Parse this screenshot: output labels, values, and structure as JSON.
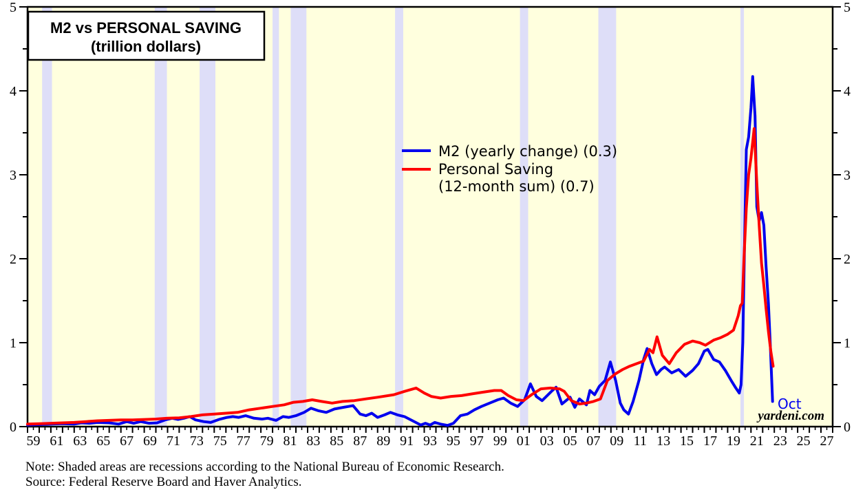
{
  "title": {
    "line1": "M2 vs PERSONAL SAVING",
    "line2": "(trillion dollars)"
  },
  "legend": {
    "items": [
      {
        "label": "M2 (yearly change) (0.3)",
        "color": "#0000EE"
      },
      {
        "label": "Personal Saving",
        "label2": "(12-month sum) (0.7)",
        "color": "#FF0000"
      }
    ]
  },
  "annotations": {
    "oct_label": "Oct",
    "watermark": "yardeni.com"
  },
  "notes": {
    "line1": "Note: Shaded areas are recessions according to the National Bureau of Economic Research.",
    "line2": "Source: Federal Reserve Board and Haver Analytics."
  },
  "colors": {
    "plot_background": "#FFFFDE",
    "recession_band": "#DEDEF8",
    "frame": "#000000",
    "m2_line": "#0000EE",
    "saving_line": "#FF0000"
  },
  "chart_data": {
    "type": "line",
    "title": "M2 vs PERSONAL SAVING (trillion dollars)",
    "xlabel": "",
    "ylabel": "trillion dollars",
    "x_range": [
      1959,
      2028
    ],
    "y_range": [
      0,
      5
    ],
    "y_ticks": [
      0,
      1,
      2,
      3,
      4,
      5
    ],
    "y_minor_step": 0.5,
    "y_axis_sides": [
      "left",
      "right"
    ],
    "grid": false,
    "legend_position": "upper-center",
    "x_tick_labels": [
      "59",
      "61",
      "63",
      "65",
      "67",
      "69",
      "71",
      "73",
      "75",
      "77",
      "79",
      "81",
      "83",
      "85",
      "87",
      "89",
      "91",
      "93",
      "95",
      "97",
      "99",
      "01",
      "03",
      "05",
      "07",
      "09",
      "11",
      "13",
      "15",
      "17",
      "19",
      "21",
      "23",
      "25",
      "27"
    ],
    "recession_bands": [
      [
        1960.25,
        1961.1
      ],
      [
        1969.9,
        1970.95
      ],
      [
        1973.75,
        1975.1
      ],
      [
        1980.0,
        1980.55
      ],
      [
        1981.55,
        1982.9
      ],
      [
        1990.5,
        1991.2
      ],
      [
        2001.2,
        2001.9
      ],
      [
        2007.92,
        2009.45
      ],
      [
        2020.1,
        2020.4
      ]
    ],
    "series": [
      {
        "id": "m2-line",
        "name": "M2 (yearly change)",
        "color": "#0000EE",
        "last_value": 0.3,
        "last_point_label": "Oct",
        "points": [
          [
            1959.0,
            0.02
          ],
          [
            1960.0,
            0.025
          ],
          [
            1961.0,
            0.03
          ],
          [
            1962.0,
            0.035
          ],
          [
            1963.0,
            0.03
          ],
          [
            1963.6,
            0.045
          ],
          [
            1964.3,
            0.04
          ],
          [
            1965.0,
            0.05
          ],
          [
            1966.0,
            0.045
          ],
          [
            1966.8,
            0.03
          ],
          [
            1967.5,
            0.06
          ],
          [
            1968.1,
            0.04
          ],
          [
            1968.7,
            0.06
          ],
          [
            1969.4,
            0.04
          ],
          [
            1970.1,
            0.045
          ],
          [
            1970.8,
            0.08
          ],
          [
            1971.4,
            0.1
          ],
          [
            1971.9,
            0.085
          ],
          [
            1972.4,
            0.1
          ],
          [
            1972.9,
            0.12
          ],
          [
            1973.4,
            0.08
          ],
          [
            1974.1,
            0.06
          ],
          [
            1974.7,
            0.05
          ],
          [
            1975.4,
            0.085
          ],
          [
            1976.1,
            0.11
          ],
          [
            1976.6,
            0.12
          ],
          [
            1977.1,
            0.11
          ],
          [
            1977.7,
            0.13
          ],
          [
            1978.4,
            0.1
          ],
          [
            1979.1,
            0.09
          ],
          [
            1979.6,
            0.1
          ],
          [
            1980.3,
            0.075
          ],
          [
            1980.9,
            0.12
          ],
          [
            1981.4,
            0.11
          ],
          [
            1982.0,
            0.13
          ],
          [
            1982.7,
            0.17
          ],
          [
            1983.3,
            0.22
          ],
          [
            1983.9,
            0.19
          ],
          [
            1984.6,
            0.17
          ],
          [
            1985.3,
            0.21
          ],
          [
            1986.1,
            0.23
          ],
          [
            1986.9,
            0.25
          ],
          [
            1987.5,
            0.15
          ],
          [
            1988.0,
            0.13
          ],
          [
            1988.5,
            0.16
          ],
          [
            1989.0,
            0.11
          ],
          [
            1989.6,
            0.14
          ],
          [
            1990.1,
            0.17
          ],
          [
            1990.7,
            0.14
          ],
          [
            1991.3,
            0.12
          ],
          [
            1992.0,
            0.07
          ],
          [
            1992.7,
            0.02
          ],
          [
            1993.1,
            0.04
          ],
          [
            1993.5,
            0.02
          ],
          [
            1993.9,
            0.05
          ],
          [
            1994.4,
            0.03
          ],
          [
            1995.0,
            0.015
          ],
          [
            1995.5,
            0.04
          ],
          [
            1996.1,
            0.13
          ],
          [
            1996.7,
            0.15
          ],
          [
            1997.3,
            0.2
          ],
          [
            1997.9,
            0.24
          ],
          [
            1998.6,
            0.28
          ],
          [
            1999.3,
            0.32
          ],
          [
            1999.8,
            0.34
          ],
          [
            2000.4,
            0.28
          ],
          [
            2001.0,
            0.24
          ],
          [
            2001.6,
            0.32
          ],
          [
            2002.1,
            0.51
          ],
          [
            2002.6,
            0.36
          ],
          [
            2003.1,
            0.31
          ],
          [
            2003.9,
            0.42
          ],
          [
            2004.3,
            0.47
          ],
          [
            2004.8,
            0.27
          ],
          [
            2005.5,
            0.35
          ],
          [
            2005.9,
            0.23
          ],
          [
            2006.3,
            0.33
          ],
          [
            2006.9,
            0.26
          ],
          [
            2007.2,
            0.43
          ],
          [
            2007.6,
            0.38
          ],
          [
            2008.0,
            0.48
          ],
          [
            2008.5,
            0.55
          ],
          [
            2008.95,
            0.77
          ],
          [
            2009.4,
            0.55
          ],
          [
            2009.8,
            0.28
          ],
          [
            2010.1,
            0.2
          ],
          [
            2010.5,
            0.15
          ],
          [
            2010.9,
            0.3
          ],
          [
            2011.4,
            0.55
          ],
          [
            2011.8,
            0.8
          ],
          [
            2012.1,
            0.93
          ],
          [
            2012.5,
            0.75
          ],
          [
            2012.9,
            0.62
          ],
          [
            2013.3,
            0.68
          ],
          [
            2013.6,
            0.71
          ],
          [
            2014.2,
            0.64
          ],
          [
            2014.8,
            0.68
          ],
          [
            2015.4,
            0.6
          ],
          [
            2016.0,
            0.67
          ],
          [
            2016.5,
            0.75
          ],
          [
            2017.0,
            0.9
          ],
          [
            2017.3,
            0.92
          ],
          [
            2017.8,
            0.8
          ],
          [
            2018.3,
            0.77
          ],
          [
            2018.8,
            0.67
          ],
          [
            2019.3,
            0.55
          ],
          [
            2019.7,
            0.46
          ],
          [
            2020.0,
            0.4
          ],
          [
            2020.15,
            0.5
          ],
          [
            2020.3,
            1.0
          ],
          [
            2020.45,
            2.2
          ],
          [
            2020.6,
            3.3
          ],
          [
            2020.8,
            3.45
          ],
          [
            2021.0,
            3.8
          ],
          [
            2021.15,
            4.17
          ],
          [
            2021.35,
            3.7
          ],
          [
            2021.5,
            2.62
          ],
          [
            2021.7,
            2.45
          ],
          [
            2021.9,
            2.55
          ],
          [
            2022.1,
            2.4
          ],
          [
            2022.3,
            1.9
          ],
          [
            2022.5,
            1.46
          ],
          [
            2022.65,
            0.99
          ],
          [
            2022.85,
            0.3
          ]
        ]
      },
      {
        "id": "personal-saving-line",
        "name": "Personal Saving (12-month sum)",
        "color": "#FF0000",
        "last_value": 0.7,
        "points": [
          [
            1959.0,
            0.03
          ],
          [
            1960.0,
            0.035
          ],
          [
            1961.0,
            0.04
          ],
          [
            1962.0,
            0.045
          ],
          [
            1963.0,
            0.05
          ],
          [
            1964.0,
            0.06
          ],
          [
            1965.0,
            0.07
          ],
          [
            1966.0,
            0.075
          ],
          [
            1967.0,
            0.08
          ],
          [
            1968.0,
            0.08
          ],
          [
            1969.0,
            0.085
          ],
          [
            1970.0,
            0.09
          ],
          [
            1971.0,
            0.1
          ],
          [
            1972.0,
            0.105
          ],
          [
            1973.0,
            0.12
          ],
          [
            1974.0,
            0.14
          ],
          [
            1975.0,
            0.15
          ],
          [
            1976.0,
            0.16
          ],
          [
            1977.0,
            0.17
          ],
          [
            1978.0,
            0.2
          ],
          [
            1979.0,
            0.22
          ],
          [
            1980.0,
            0.24
          ],
          [
            1981.0,
            0.26
          ],
          [
            1981.8,
            0.29
          ],
          [
            1982.6,
            0.3
          ],
          [
            1983.4,
            0.32
          ],
          [
            1984.2,
            0.3
          ],
          [
            1985.1,
            0.28
          ],
          [
            1986.0,
            0.3
          ],
          [
            1987.0,
            0.31
          ],
          [
            1988.0,
            0.33
          ],
          [
            1989.0,
            0.35
          ],
          [
            1990.4,
            0.38
          ],
          [
            1991.3,
            0.42
          ],
          [
            1992.3,
            0.46
          ],
          [
            1993.0,
            0.4
          ],
          [
            1993.6,
            0.36
          ],
          [
            1994.4,
            0.34
          ],
          [
            1995.3,
            0.36
          ],
          [
            1996.2,
            0.37
          ],
          [
            1997.1,
            0.39
          ],
          [
            1998.0,
            0.41
          ],
          [
            1999.0,
            0.43
          ],
          [
            1999.6,
            0.43
          ],
          [
            2000.2,
            0.37
          ],
          [
            2000.9,
            0.32
          ],
          [
            2001.5,
            0.31
          ],
          [
            2002.2,
            0.38
          ],
          [
            2003.0,
            0.45
          ],
          [
            2003.8,
            0.46
          ],
          [
            2004.6,
            0.45
          ],
          [
            2005.0,
            0.42
          ],
          [
            2005.6,
            0.31
          ],
          [
            2006.3,
            0.27
          ],
          [
            2006.9,
            0.28
          ],
          [
            2007.5,
            0.3
          ],
          [
            2008.1,
            0.33
          ],
          [
            2008.7,
            0.55
          ],
          [
            2009.4,
            0.63
          ],
          [
            2010.0,
            0.68
          ],
          [
            2010.6,
            0.72
          ],
          [
            2011.2,
            0.75
          ],
          [
            2011.8,
            0.78
          ],
          [
            2012.3,
            0.92
          ],
          [
            2012.6,
            0.88
          ],
          [
            2012.95,
            1.07
          ],
          [
            2013.4,
            0.85
          ],
          [
            2014.0,
            0.75
          ],
          [
            2014.6,
            0.88
          ],
          [
            2015.3,
            0.98
          ],
          [
            2016.0,
            1.02
          ],
          [
            2016.6,
            1.0
          ],
          [
            2017.1,
            0.97
          ],
          [
            2017.8,
            1.03
          ],
          [
            2018.4,
            1.06
          ],
          [
            2019.0,
            1.1
          ],
          [
            2019.5,
            1.15
          ],
          [
            2019.9,
            1.32
          ],
          [
            2020.1,
            1.44
          ],
          [
            2020.25,
            1.47
          ],
          [
            2020.4,
            2.0
          ],
          [
            2020.6,
            2.6
          ],
          [
            2020.8,
            3.0
          ],
          [
            2021.0,
            3.2
          ],
          [
            2021.27,
            3.55
          ],
          [
            2021.5,
            2.9
          ],
          [
            2021.7,
            2.4
          ],
          [
            2021.9,
            1.95
          ],
          [
            2022.1,
            1.68
          ],
          [
            2022.3,
            1.4
          ],
          [
            2022.5,
            1.13
          ],
          [
            2022.7,
            0.9
          ],
          [
            2022.9,
            0.72
          ]
        ]
      }
    ]
  }
}
